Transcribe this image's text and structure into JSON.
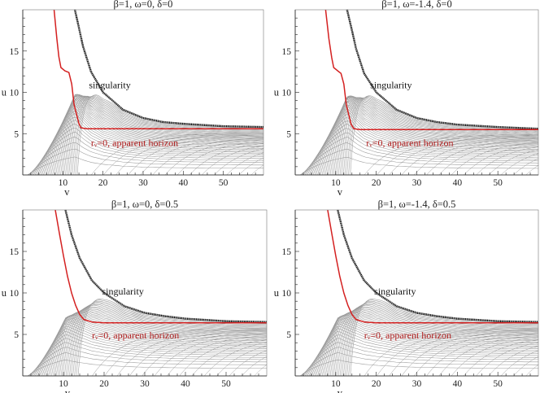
{
  "chart_data": [
    {
      "type": "line",
      "title": "β=1, ω=0, δ=0",
      "xlabel": "v",
      "ylabel": "u",
      "xlim": [
        0,
        60
      ],
      "ylim": [
        0,
        20
      ],
      "xticks": [
        "10",
        "20",
        "30",
        "40",
        "50"
      ],
      "yticks": [
        "5",
        "10",
        "15"
      ],
      "annotations": {
        "singularity": "singularity",
        "horizon": "rᵥ=0, apparent horizon"
      },
      "singularity": {
        "x": [
          13,
          14,
          15,
          17,
          20,
          25,
          30,
          35,
          40,
          50,
          60
        ],
        "y": [
          20,
          17.8,
          15.6,
          12.5,
          10,
          7.9,
          6.9,
          6.4,
          6.2,
          5.9,
          5.8
        ]
      },
      "horizon": {
        "x": [
          7.8,
          8.5,
          9,
          9.5,
          10.5,
          11.5,
          12.2,
          12.8,
          14,
          14.5,
          16,
          30,
          60
        ],
        "y": [
          20,
          16.5,
          14.3,
          13,
          12.6,
          12.4,
          11,
          8.5,
          6.2,
          5.7,
          5.6,
          5.6,
          5.6
        ]
      },
      "family_levels": 34,
      "colors": {
        "horizon": "#d42020",
        "singularity": "#111111",
        "family": "#9a9a9a"
      }
    },
    {
      "type": "line",
      "title": "β=1, ω=-1.4, δ=0",
      "xlabel": "v",
      "ylabel": "u",
      "xlim": [
        0,
        60
      ],
      "ylim": [
        0,
        20
      ],
      "xticks": [
        "10",
        "20",
        "30",
        "40",
        "50"
      ],
      "yticks": [
        "5",
        "10",
        "15"
      ],
      "annotations": {
        "singularity": "singularity",
        "horizon": "rᵥ=0, apparent horizon"
      },
      "singularity": {
        "x": [
          12.8,
          14,
          15,
          17,
          20,
          25,
          30,
          35,
          40,
          50,
          60
        ],
        "y": [
          20,
          17.5,
          15.3,
          12.3,
          10,
          7.9,
          6.9,
          6.4,
          6.1,
          5.8,
          5.6
        ]
      },
      "horizon": {
        "x": [
          7.5,
          8.3,
          9,
          9.5,
          10.5,
          11.3,
          12,
          12.6,
          13.8,
          14.5,
          16,
          30,
          60
        ],
        "y": [
          20,
          16.5,
          14.2,
          13,
          12.6,
          12.3,
          11,
          8.5,
          6.1,
          5.6,
          5.5,
          5.5,
          5.5
        ]
      },
      "family_levels": 34,
      "colors": {
        "horizon": "#d42020",
        "singularity": "#111111",
        "family": "#9a9a9a"
      }
    },
    {
      "type": "line",
      "title": "β=1, ω=0, δ=0.5",
      "xlabel": "v",
      "ylabel": "u",
      "xlim": [
        0,
        60
      ],
      "ylim": [
        0,
        20
      ],
      "xticks": [
        "10",
        "20",
        "30",
        "40",
        "50"
      ],
      "yticks": [
        "5",
        "10",
        "15"
      ],
      "annotations": {
        "singularity": "singularity",
        "horizon": "rᵥ=0, apparent horizon"
      },
      "singularity": {
        "x": [
          10.5,
          12,
          14,
          17,
          20,
          25,
          30,
          35,
          40,
          50,
          60
        ],
        "y": [
          20,
          17,
          14.2,
          11.5,
          10,
          8.4,
          7.6,
          7.2,
          6.9,
          6.6,
          6.5
        ]
      },
      "horizon": {
        "x": [
          8,
          9,
          10,
          11,
          12,
          13,
          14,
          15,
          17,
          20,
          30,
          60
        ],
        "y": [
          20,
          17.2,
          14.5,
          12,
          10,
          8.5,
          7.4,
          6.8,
          6.5,
          6.4,
          6.4,
          6.4
        ]
      },
      "family_levels": 34,
      "colors": {
        "horizon": "#d42020",
        "singularity": "#111111",
        "family": "#9a9a9a"
      }
    },
    {
      "type": "line",
      "title": "β=1, ω=-1.4, δ=0.5",
      "xlabel": "v",
      "ylabel": "u",
      "xlim": [
        0,
        60
      ],
      "ylim": [
        0,
        20
      ],
      "xticks": [
        "10",
        "20",
        "30",
        "40",
        "50"
      ],
      "yticks": [
        "5",
        "10",
        "15"
      ],
      "annotations": {
        "singularity": "singularity",
        "horizon": "rᵥ=0, apparent horizon"
      },
      "singularity": {
        "x": [
          10.5,
          12,
          14,
          17,
          20,
          25,
          30,
          35,
          40,
          50,
          60
        ],
        "y": [
          20,
          17,
          14.2,
          11.5,
          10,
          8.4,
          7.6,
          7.2,
          6.9,
          6.6,
          6.5
        ]
      },
      "horizon": {
        "x": [
          8,
          9,
          10,
          11,
          12,
          13,
          14,
          15,
          17,
          20,
          30,
          60
        ],
        "y": [
          20,
          17.2,
          14.5,
          12,
          10,
          8.5,
          7.4,
          6.8,
          6.5,
          6.4,
          6.4,
          6.4
        ]
      },
      "family_levels": 34,
      "colors": {
        "horizon": "#d42020",
        "singularity": "#111111",
        "family": "#9a9a9a"
      }
    }
  ]
}
